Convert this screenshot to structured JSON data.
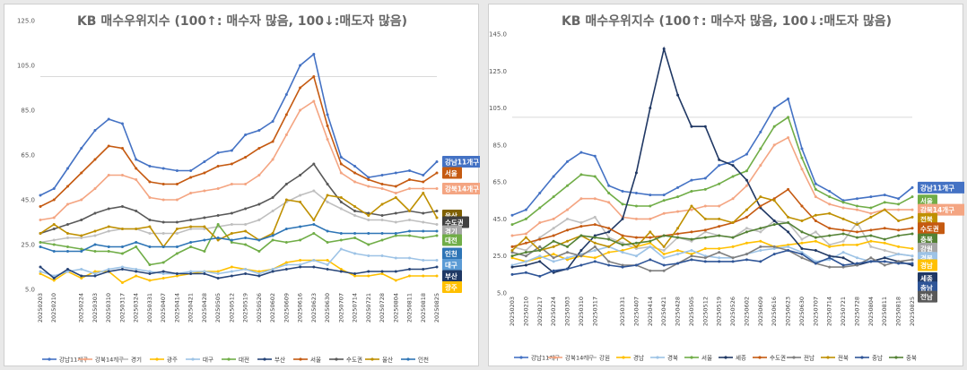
{
  "chart_data": [
    {
      "type": "line",
      "title": "KB 매수우위지수 (100↑: 매수자 많음, 100↓:매도자 많음)",
      "xlabel": "",
      "ylabel": "",
      "ylim": [
        5,
        125
      ],
      "yticks": [
        "5.0",
        "25.0",
        "45.0",
        "65.0",
        "85.0",
        "105.0",
        "125.0"
      ],
      "reference_line": 100,
      "x": [
        "20250203",
        "20250210",
        "20250217",
        "20250224",
        "20250303",
        "20250310",
        "20250317",
        "20250324",
        "20250331",
        "20250407",
        "20250414",
        "20250421",
        "20250428",
        "20250505",
        "20250512",
        "20250519",
        "20250526",
        "20250602",
        "20250609",
        "20250616",
        "20250623",
        "20250630",
        "20250707",
        "20250714",
        "20250721",
        "20250728",
        "20250804",
        "20250811",
        "20250818",
        "20250825"
      ],
      "x_tick_labels": [
        "20250203",
        "20250210",
        "20250224",
        "20250303",
        "20250310",
        "20250317",
        "20250324",
        "20250331",
        "20250407",
        "20250414",
        "20250421",
        "20250428",
        "20250505",
        "20250512",
        "20250519",
        "20250526",
        "20250602",
        "20250609",
        "20250616",
        "20250623",
        "20250630",
        "20250707",
        "20250714",
        "20250721",
        "20250728",
        "20250804",
        "20250811",
        "20250818",
        "20250825"
      ],
      "legend_position": "bottom",
      "series": [
        {
          "name": "강남11개구",
          "color": "#4472c4",
          "values": [
            47,
            50,
            59,
            68,
            76,
            81,
            79,
            63,
            60,
            59,
            58,
            58,
            62,
            66,
            67,
            74,
            76,
            80,
            92,
            105,
            110,
            83,
            64,
            60,
            55,
            56,
            57,
            58,
            56,
            62
          ]
        },
        {
          "name": "강북14개구",
          "color": "#f4a582",
          "values": [
            36,
            37,
            43,
            45,
            50,
            56,
            56,
            54,
            46,
            45,
            45,
            48,
            49,
            50,
            52,
            52,
            56,
            63,
            74,
            85,
            89,
            72,
            57,
            53,
            51,
            50,
            48,
            50,
            50,
            50
          ]
        },
        {
          "name": "경기",
          "color": "#bfbfbf",
          "values": [
            26,
            27,
            28,
            28,
            29,
            31,
            32,
            32,
            30,
            30,
            30,
            32,
            32,
            33,
            34,
            34,
            36,
            40,
            44,
            47,
            49,
            44,
            41,
            38,
            36,
            36,
            35,
            36,
            35,
            34
          ]
        },
        {
          "name": "광주",
          "color": "#ffc000",
          "values": [
            12,
            9,
            13,
            10,
            13,
            13,
            8,
            11,
            9,
            10,
            11,
            12,
            13,
            13,
            15,
            14,
            13,
            14,
            17,
            18,
            18,
            18,
            14,
            11,
            11,
            12,
            9,
            11,
            11,
            11
          ]
        },
        {
          "name": "대구",
          "color": "#9dc3e6",
          "values": [
            13,
            11,
            13,
            14,
            12,
            14,
            15,
            14,
            13,
            12,
            12,
            13,
            13,
            12,
            13,
            14,
            12,
            14,
            16,
            16,
            18,
            16,
            23,
            21,
            20,
            20,
            19,
            19,
            18,
            18
          ]
        },
        {
          "name": "대전",
          "color": "#70ad47",
          "values": [
            26,
            25,
            24,
            23,
            22,
            22,
            21,
            24,
            16,
            17,
            21,
            24,
            22,
            34,
            26,
            25,
            22,
            27,
            26,
            27,
            30,
            26,
            27,
            28,
            25,
            27,
            29,
            29,
            28,
            29
          ]
        },
        {
          "name": "부산",
          "color": "#264478",
          "values": [
            15,
            10,
            14,
            11,
            11,
            13,
            14,
            13,
            12,
            13,
            12,
            12,
            12,
            10,
            11,
            12,
            11,
            13,
            14,
            15,
            15,
            14,
            13,
            12,
            13,
            13,
            13,
            14,
            14,
            15
          ]
        },
        {
          "name": "서울",
          "color": "#c55a11",
          "values": [
            42,
            45,
            51,
            57,
            63,
            69,
            68,
            59,
            53,
            52,
            52,
            55,
            57,
            60,
            61,
            64,
            68,
            71,
            83,
            95,
            100,
            78,
            61,
            57,
            54,
            52,
            51,
            54,
            53,
            57
          ]
        },
        {
          "name": "수도권",
          "color": "#595959",
          "values": [
            30,
            32,
            34,
            36,
            39,
            41,
            42,
            40,
            36,
            35,
            35,
            36,
            37,
            38,
            39,
            41,
            43,
            46,
            52,
            56,
            61,
            52,
            44,
            40,
            39,
            38,
            39,
            40,
            39,
            40
          ]
        },
        {
          "name": "울산",
          "color": "#bf9000",
          "values": [
            30,
            34,
            30,
            29,
            31,
            33,
            32,
            32,
            33,
            24,
            32,
            33,
            33,
            27,
            30,
            31,
            27,
            30,
            45,
            44,
            36,
            47,
            46,
            42,
            38,
            43,
            46,
            40,
            48,
            37
          ]
        },
        {
          "name": "인천",
          "color": "#2e75b6",
          "values": [
            24,
            22,
            22,
            22,
            25,
            24,
            24,
            26,
            24,
            24,
            24,
            26,
            27,
            28,
            27,
            28,
            27,
            29,
            32,
            33,
            34,
            31,
            30,
            30,
            30,
            30,
            30,
            31,
            31,
            31
          ]
        }
      ],
      "end_labels": [
        {
          "text": "강남11개구",
          "color": "#4472c4",
          "value": 62
        },
        {
          "text": "서울",
          "color": "#c55a11",
          "value": 57
        },
        {
          "text": "강북14개구",
          "color": "#f4a582",
          "value": 50
        },
        {
          "text": "울산",
          "color": "#7f6000",
          "value": 38
        },
        {
          "text": "수도권",
          "color": "#404040",
          "value": 35
        },
        {
          "text": "경기",
          "color": "#a6a6a6",
          "value": 31
        },
        {
          "text": "대전",
          "color": "#70ad47",
          "value": 27
        },
        {
          "text": "인천",
          "color": "#2e75b6",
          "value": 21
        },
        {
          "text": "대구",
          "color": "#5b9bd5",
          "value": 16
        },
        {
          "text": "부산",
          "color": "#1f3864",
          "value": 11
        },
        {
          "text": "광주",
          "color": "#ffc000",
          "value": 6
        }
      ]
    },
    {
      "type": "line",
      "title": "KB 매수우위지수 (100↑: 매수자 많음, 100↓:매도자 많음)",
      "xlabel": "",
      "ylabel": "",
      "ylim": [
        5,
        145
      ],
      "yticks": [
        "5.0",
        "25.0",
        "45.0",
        "65.0",
        "85.0",
        "105.0",
        "125.0",
        "145.0"
      ],
      "reference_line": 100,
      "x": [
        "20250203",
        "20250210",
        "20250217",
        "20250224",
        "20250303",
        "20250310",
        "20250317",
        "20250324",
        "20250331",
        "20250407",
        "20250414",
        "20250421",
        "20250428",
        "20250505",
        "20250512",
        "20250519",
        "20250526",
        "20250602",
        "20250609",
        "20250616",
        "20250623",
        "20250630",
        "20250707",
        "20250714",
        "20250721",
        "20250728",
        "20250804",
        "20250811",
        "20250818",
        "20250825"
      ],
      "x_tick_labels": [
        "20250203",
        "20250210",
        "20250217",
        "20250224",
        "20250303",
        "20250310",
        "20250317",
        "20250331",
        "20250407",
        "20250414",
        "20250421",
        "20250428",
        "20250505",
        "20250512",
        "20250519",
        "20250526",
        "20250602",
        "20250609",
        "20250616",
        "20250623",
        "20250630",
        "20250707",
        "20250714",
        "20250721",
        "20250728",
        "20250804",
        "20250811",
        "20250818",
        "20250825"
      ],
      "legend_position": "bottom",
      "series": [
        {
          "name": "강남11개구",
          "color": "#4472c4",
          "values": [
            47,
            50,
            59,
            68,
            76,
            81,
            79,
            63,
            60,
            59,
            58,
            58,
            62,
            66,
            67,
            74,
            76,
            80,
            92,
            105,
            110,
            83,
            64,
            60,
            55,
            56,
            57,
            58,
            56,
            62
          ]
        },
        {
          "name": "강북14개구",
          "color": "#f4a582",
          "values": [
            36,
            37,
            43,
            45,
            50,
            56,
            56,
            54,
            46,
            45,
            45,
            48,
            49,
            50,
            52,
            52,
            56,
            63,
            74,
            85,
            89,
            72,
            57,
            53,
            51,
            50,
            48,
            50,
            50,
            50
          ]
        },
        {
          "name": "강원",
          "color": "#bfbfbf",
          "values": [
            30,
            28,
            35,
            40,
            45,
            43,
            46,
            35,
            32,
            29,
            30,
            28,
            35,
            33,
            38,
            36,
            35,
            40,
            38,
            44,
            43,
            34,
            38,
            31,
            33,
            43,
            30,
            28,
            26,
            25
          ]
        },
        {
          "name": "경남",
          "color": "#ffc000",
          "values": [
            24,
            22,
            24,
            26,
            23,
            25,
            24,
            27,
            28,
            30,
            32,
            26,
            28,
            26,
            29,
            29,
            30,
            32,
            33,
            30,
            31,
            32,
            33,
            30,
            31,
            31,
            33,
            32,
            30,
            29
          ]
        },
        {
          "name": "경북",
          "color": "#9dc3e6",
          "values": [
            20,
            22,
            25,
            22,
            24,
            26,
            28,
            30,
            27,
            25,
            30,
            24,
            26,
            28,
            25,
            24,
            24,
            26,
            28,
            29,
            30,
            27,
            22,
            23,
            27,
            24,
            22,
            24,
            26,
            25
          ]
        },
        {
          "name": "서울",
          "color": "#70ad47",
          "values": [
            42,
            45,
            51,
            57,
            63,
            69,
            68,
            59,
            53,
            52,
            52,
            55,
            57,
            60,
            61,
            64,
            68,
            71,
            83,
            95,
            100,
            78,
            61,
            57,
            54,
            52,
            51,
            54,
            53,
            57
          ]
        },
        {
          "name": "세종",
          "color": "#203864",
          "values": [
            19,
            20,
            22,
            16,
            18,
            28,
            36,
            38,
            45,
            70,
            105,
            137,
            112,
            95,
            95,
            77,
            74,
            66,
            51,
            44,
            38,
            29,
            28,
            25,
            24,
            20,
            22,
            24,
            22,
            20
          ]
        },
        {
          "name": "수도권",
          "color": "#c55a11",
          "values": [
            30,
            32,
            34,
            36,
            39,
            41,
            42,
            40,
            36,
            35,
            35,
            36,
            37,
            38,
            39,
            41,
            43,
            46,
            52,
            56,
            61,
            52,
            44,
            40,
            39,
            38,
            39,
            40,
            39,
            40
          ]
        },
        {
          "name": "전남",
          "color": "#7f7f7f",
          "values": [
            27,
            25,
            30,
            24,
            27,
            25,
            30,
            22,
            20,
            20,
            17,
            17,
            21,
            25,
            24,
            27,
            24,
            26,
            30,
            30,
            28,
            24,
            21,
            19,
            19,
            20,
            24,
            20,
            22,
            23
          ]
        },
        {
          "name": "전북",
          "color": "#bf9000",
          "values": [
            28,
            35,
            28,
            30,
            33,
            36,
            32,
            30,
            35,
            30,
            38,
            30,
            40,
            52,
            45,
            45,
            43,
            50,
            57,
            55,
            46,
            44,
            47,
            48,
            45,
            42,
            46,
            50,
            44,
            46
          ]
        },
        {
          "name": "충남",
          "color": "#2f5597",
          "values": [
            15,
            16,
            14,
            17,
            18,
            20,
            22,
            20,
            19,
            20,
            23,
            20,
            21,
            23,
            22,
            22,
            22,
            23,
            22,
            26,
            28,
            26,
            21,
            24,
            20,
            21,
            22,
            22,
            21,
            21
          ]
        },
        {
          "name": "충북",
          "color": "#548235",
          "values": [
            25,
            27,
            28,
            33,
            30,
            36,
            35,
            34,
            31,
            32,
            33,
            36,
            35,
            34,
            35,
            36,
            35,
            38,
            40,
            42,
            43,
            38,
            35,
            36,
            37,
            35,
            36,
            34,
            36,
            37
          ]
        }
      ],
      "end_labels": [
        {
          "text": "강남11개구",
          "color": "#4472c4",
          "value": 62
        },
        {
          "text": "서울",
          "color": "#70ad47",
          "value": 55
        },
        {
          "text": "강북14개구",
          "color": "#f4a582",
          "value": 50
        },
        {
          "text": "전북",
          "color": "#bf9000",
          "value": 45
        },
        {
          "text": "수도권",
          "color": "#c55a11",
          "value": 40
        },
        {
          "text": "충북",
          "color": "#548235",
          "value": 34
        },
        {
          "text": "강원",
          "color": "#a6a6a6",
          "value": 29
        },
        {
          "text": "경북",
          "color": "#9dc3e6",
          "value": 24
        },
        {
          "text": "경남",
          "color": "#ffc000",
          "value": 20
        },
        {
          "text": "세종",
          "color": "#203864",
          "value": 13
        },
        {
          "text": "충남",
          "color": "#2f5597",
          "value": 8
        },
        {
          "text": "전남",
          "color": "#595959",
          "value": 3
        }
      ]
    }
  ]
}
